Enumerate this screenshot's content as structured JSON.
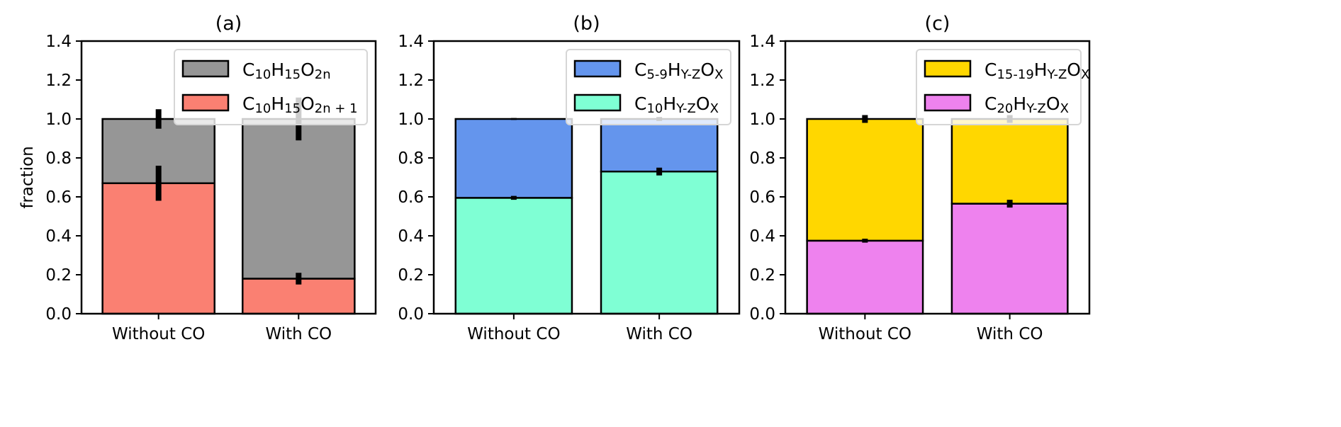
{
  "chart_data": [
    {
      "type": "bar",
      "stacked": true,
      "title": "(a)",
      "ylabel": "fraction",
      "xlabel": "",
      "ylim": [
        0,
        1.4
      ],
      "yticks": [
        "0.0",
        "0.2",
        "0.4",
        "0.6",
        "0.8",
        "1.0",
        "1.2",
        "1.4"
      ],
      "categories": [
        "Without CO",
        "With CO"
      ],
      "legend_position": "upper right",
      "series": [
        {
          "name_parts": [
            [
              "C",
              0
            ],
            [
              "10",
              1
            ],
            [
              "H",
              0
            ],
            [
              "15",
              1
            ],
            [
              "O",
              0
            ],
            [
              "2n + 1",
              1
            ]
          ],
          "color": "#fa8072",
          "values": [
            0.67,
            0.18
          ],
          "errors": [
            0.09,
            0.03
          ]
        },
        {
          "name_parts": [
            [
              "C",
              0
            ],
            [
              "10",
              1
            ],
            [
              "H",
              0
            ],
            [
              "15",
              1
            ],
            [
              "O",
              0
            ],
            [
              "2n",
              1
            ]
          ],
          "color": "#969696",
          "values": [
            0.33,
            0.82
          ],
          "errors": [
            0.05,
            0.11
          ]
        }
      ]
    },
    {
      "type": "bar",
      "stacked": true,
      "title": "(b)",
      "ylabel": "",
      "xlabel": "",
      "ylim": [
        0,
        1.4
      ],
      "yticks": [
        "0.0",
        "0.2",
        "0.4",
        "0.6",
        "0.8",
        "1.0",
        "1.2",
        "1.4"
      ],
      "categories": [
        "Without CO",
        "With CO"
      ],
      "legend_position": "upper right",
      "series": [
        {
          "name_parts": [
            [
              "C",
              0
            ],
            [
              "10",
              1
            ],
            [
              "H",
              0
            ],
            [
              "Y-Z",
              1
            ],
            [
              "O",
              0
            ],
            [
              "X",
              1
            ]
          ],
          "color": "#7fffd4",
          "values": [
            0.595,
            0.73
          ],
          "errors": [
            0.01,
            0.02
          ]
        },
        {
          "name_parts": [
            [
              "C",
              0
            ],
            [
              "5-9",
              1
            ],
            [
              "H",
              0
            ],
            [
              "Y-Z",
              1
            ],
            [
              "O",
              0
            ],
            [
              "X",
              1
            ]
          ],
          "color": "#6495ed",
          "values": [
            0.405,
            0.27
          ],
          "errors": [
            0.005,
            0.01
          ]
        }
      ]
    },
    {
      "type": "bar",
      "stacked": true,
      "title": "(c)",
      "ylabel": "",
      "xlabel": "",
      "ylim": [
        0,
        1.4
      ],
      "yticks": [
        "0.0",
        "0.2",
        "0.4",
        "0.6",
        "0.8",
        "1.0",
        "1.2",
        "1.4"
      ],
      "categories": [
        "Without CO",
        "With CO"
      ],
      "legend_position": "upper right",
      "series": [
        {
          "name_parts": [
            [
              "C",
              0
            ],
            [
              "20",
              1
            ],
            [
              "H",
              0
            ],
            [
              "Y-Z",
              1
            ],
            [
              "O",
              0
            ],
            [
              "X",
              1
            ]
          ],
          "color": "#ee82ee",
          "values": [
            0.375,
            0.565
          ],
          "errors": [
            0.01,
            0.02
          ]
        },
        {
          "name_parts": [
            [
              "C",
              0
            ],
            [
              "15-19",
              1
            ],
            [
              "H",
              0
            ],
            [
              "Y-Z",
              1
            ],
            [
              "O",
              0
            ],
            [
              "X",
              1
            ]
          ],
          "color": "#ffd700",
          "values": [
            0.625,
            0.435
          ],
          "errors": [
            0.02,
            0.02
          ]
        }
      ]
    }
  ]
}
